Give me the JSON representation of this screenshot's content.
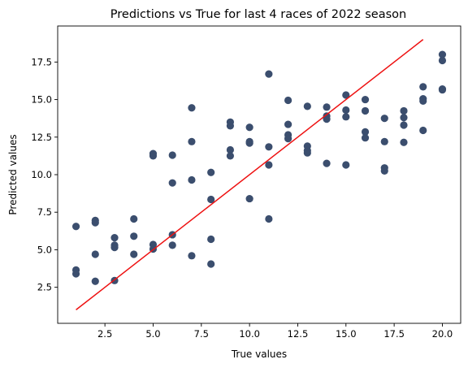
{
  "chart_data": {
    "type": "scatter",
    "title": "Predictions vs True for last 4 races of 2022 season",
    "xlabel": "True values",
    "ylabel": "Predicted values",
    "xlim": [
      0.05,
      20.95
    ],
    "ylim": [
      0.1,
      19.9
    ],
    "xticks": [
      2.5,
      5.0,
      7.5,
      10.0,
      12.5,
      15.0,
      17.5,
      20.0
    ],
    "xtick_labels": [
      "2.5",
      "5.0",
      "7.5",
      "10.0",
      "12.5",
      "15.0",
      "17.5",
      "20.0"
    ],
    "yticks": [
      2.5,
      5.0,
      7.5,
      10.0,
      12.5,
      15.0,
      17.5
    ],
    "ytick_labels": [
      "2.5",
      "5.0",
      "7.5",
      "10.0",
      "12.5",
      "15.0",
      "17.5"
    ],
    "grid": false,
    "legend": "none",
    "point_color": "#3b4e6e",
    "line_color": "#ee1111",
    "series": [
      {
        "kind": "scatter",
        "points": [
          [
            1,
            6.55
          ],
          [
            1,
            3.65
          ],
          [
            1,
            3.4
          ],
          [
            2,
            6.95
          ],
          [
            2,
            6.8
          ],
          [
            2,
            4.7
          ],
          [
            2,
            2.9
          ],
          [
            3,
            5.8
          ],
          [
            3,
            5.3
          ],
          [
            3,
            5.15
          ],
          [
            3,
            2.95
          ],
          [
            4,
            7.05
          ],
          [
            4,
            5.9
          ],
          [
            4,
            4.7
          ],
          [
            5,
            11.4
          ],
          [
            5,
            11.25
          ],
          [
            5,
            5.35
          ],
          [
            5,
            5.05
          ],
          [
            6,
            11.3
          ],
          [
            6,
            9.45
          ],
          [
            6,
            6.0
          ],
          [
            6,
            5.3
          ],
          [
            7,
            14.45
          ],
          [
            7,
            12.2
          ],
          [
            7,
            9.65
          ],
          [
            7,
            4.6
          ],
          [
            8,
            10.15
          ],
          [
            8,
            8.35
          ],
          [
            8,
            5.7
          ],
          [
            8,
            4.05
          ],
          [
            9,
            13.5
          ],
          [
            9,
            13.25
          ],
          [
            9,
            11.65
          ],
          [
            9,
            11.25
          ],
          [
            10,
            13.15
          ],
          [
            10,
            12.2
          ],
          [
            10,
            12.1
          ],
          [
            10,
            8.4
          ],
          [
            11,
            16.7
          ],
          [
            11,
            11.85
          ],
          [
            11,
            10.65
          ],
          [
            11,
            7.05
          ],
          [
            12,
            14.95
          ],
          [
            12,
            13.35
          ],
          [
            12,
            12.65
          ],
          [
            12,
            12.4
          ],
          [
            13,
            14.55
          ],
          [
            13,
            11.9
          ],
          [
            13,
            11.6
          ],
          [
            13,
            11.45
          ],
          [
            14,
            14.5
          ],
          [
            14,
            13.9
          ],
          [
            14,
            13.7
          ],
          [
            14,
            10.75
          ],
          [
            15,
            15.3
          ],
          [
            15,
            14.3
          ],
          [
            15,
            13.85
          ],
          [
            15,
            10.65
          ],
          [
            16,
            15.0
          ],
          [
            16,
            14.25
          ],
          [
            16,
            12.85
          ],
          [
            16,
            12.45
          ],
          [
            17,
            13.75
          ],
          [
            17,
            12.2
          ],
          [
            17,
            10.45
          ],
          [
            17,
            10.25
          ],
          [
            18,
            14.25
          ],
          [
            18,
            13.8
          ],
          [
            18,
            13.3
          ],
          [
            18,
            12.15
          ],
          [
            19,
            15.85
          ],
          [
            19,
            15.05
          ],
          [
            19,
            14.9
          ],
          [
            19,
            12.95
          ],
          [
            20,
            18.0
          ],
          [
            20,
            17.6
          ],
          [
            20,
            15.7
          ],
          [
            20,
            15.65
          ]
        ]
      },
      {
        "kind": "line",
        "points": [
          [
            1,
            1
          ],
          [
            19,
            19
          ]
        ]
      }
    ]
  }
}
